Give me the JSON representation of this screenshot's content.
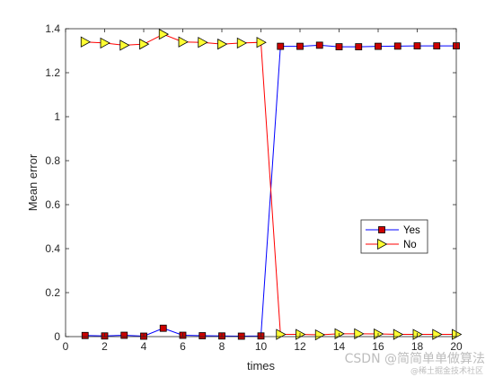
{
  "chart_data": {
    "type": "line",
    "title": "",
    "xlabel": "times",
    "ylabel": "Mean error",
    "xlim": [
      0,
      20
    ],
    "ylim": [
      0,
      1.4
    ],
    "xticks": [
      0,
      2,
      4,
      6,
      8,
      10,
      12,
      14,
      16,
      18,
      20
    ],
    "yticks": [
      0,
      0.2,
      0.4,
      0.6,
      0.8,
      1,
      1.2,
      1.4
    ],
    "grid": false,
    "legend_position": "right",
    "x": [
      1,
      2,
      3,
      4,
      5,
      6,
      7,
      8,
      9,
      10,
      11,
      12,
      13,
      14,
      15,
      16,
      17,
      18,
      19,
      20
    ],
    "series": [
      {
        "name": "Yes",
        "line_color": "#0000ff",
        "marker": "square",
        "marker_color": "#cc0000",
        "values": [
          0.005,
          0.003,
          0.006,
          0.002,
          0.038,
          0.006,
          0.004,
          0.003,
          0.002,
          0.003,
          1.32,
          1.32,
          1.325,
          1.318,
          1.318,
          1.32,
          1.321,
          1.322,
          1.322,
          1.322
        ]
      },
      {
        "name": "No",
        "line_color": "#ff0000",
        "marker": "triangle-right",
        "marker_color": "#ffff33",
        "values": [
          1.34,
          1.335,
          1.325,
          1.33,
          1.375,
          1.34,
          1.338,
          1.33,
          1.335,
          1.338,
          0.01,
          0.01,
          0.008,
          0.013,
          0.013,
          0.012,
          0.01,
          0.01,
          0.01,
          0.01
        ]
      }
    ]
  },
  "watermark": "CSDN @简简单单做算法",
  "watermark_sub": "@稀土掘金技术社区"
}
